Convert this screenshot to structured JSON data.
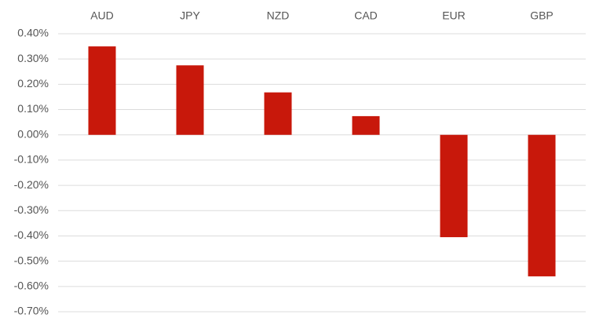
{
  "chart_data": {
    "type": "bar",
    "title": "",
    "xlabel": "",
    "ylabel": "",
    "categories": [
      "AUD",
      "JPY",
      "NZD",
      "CAD",
      "EUR",
      "GBP"
    ],
    "values": [
      0.35,
      0.275,
      0.168,
      0.074,
      -0.405,
      -0.56
    ],
    "ylim": [
      -0.7,
      0.4
    ],
    "yticks": [
      0.4,
      0.3,
      0.2,
      0.1,
      0.0,
      -0.1,
      -0.2,
      -0.3,
      -0.4,
      -0.5,
      -0.6,
      -0.7
    ],
    "ytick_labels": [
      "0.40%",
      "0.30%",
      "0.20%",
      "0.10%",
      "0.00%",
      "-0.10%",
      "-0.20%",
      "-0.30%",
      "-0.40%",
      "-0.50%",
      "-0.60%",
      "-0.70%"
    ],
    "category_axis_position": "top",
    "grid": true,
    "bar_color": "#c8180b"
  }
}
